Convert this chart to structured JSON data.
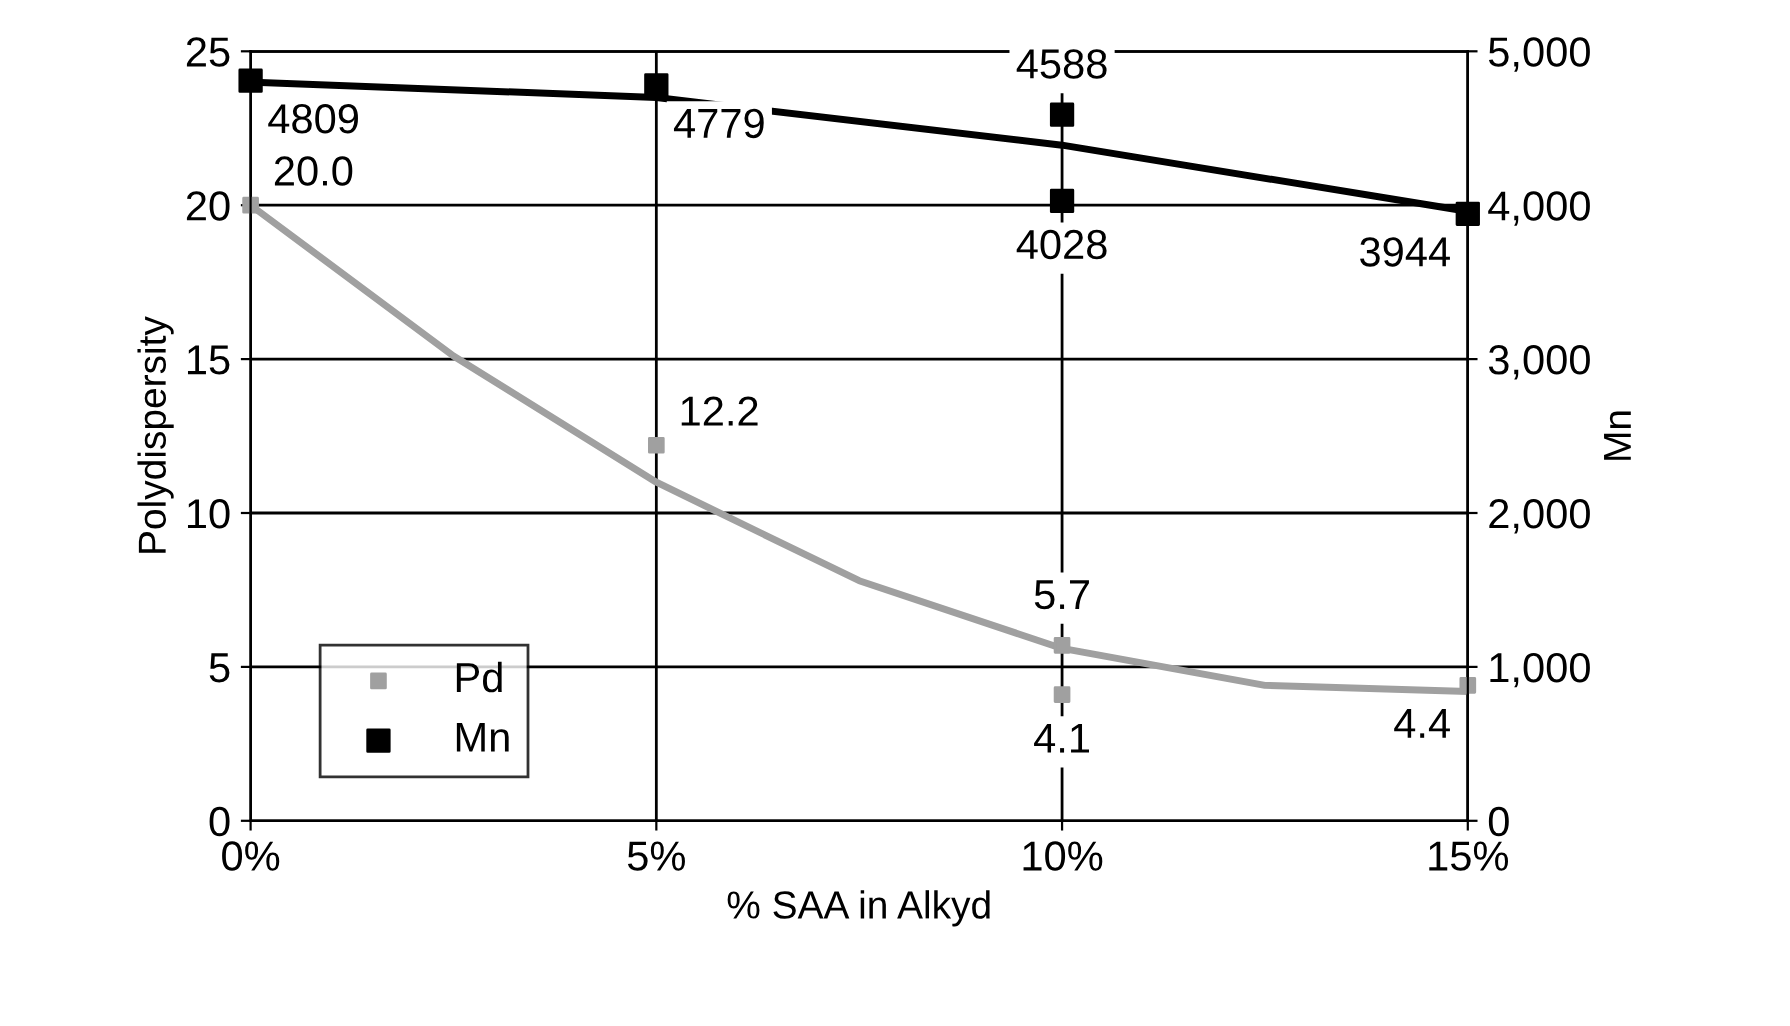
{
  "chart_data": {
    "type": "scatter",
    "xlabel": "% SAA in Alkyd",
    "ylabel": "Polydispersity",
    "y2label": "Mn",
    "xlim": [
      0,
      15
    ],
    "xticks": [
      {
        "value": 0,
        "label": "0%"
      },
      {
        "value": 5,
        "label": "5%"
      },
      {
        "value": 10,
        "label": "10%"
      },
      {
        "value": 15,
        "label": "15%"
      }
    ],
    "ylim": [
      0,
      25
    ],
    "yticks": [
      0,
      5,
      10,
      15,
      20,
      25
    ],
    "y2lim": [
      0,
      5000
    ],
    "y2ticks": [
      {
        "value": 0,
        "label": "0"
      },
      {
        "value": 1000,
        "label": "1,000"
      },
      {
        "value": 2000,
        "label": "2,000"
      },
      {
        "value": 3000,
        "label": "3,000"
      },
      {
        "value": 4000,
        "label": "4,000"
      },
      {
        "value": 5000,
        "label": "5,000"
      }
    ],
    "grid": true,
    "legend": "bottom left",
    "series": [
      {
        "type": "line",
        "color": "#a0a0a0",
        "x": [
          0,
          2.5,
          5,
          7.5,
          10,
          12.5,
          15
        ],
        "values": [
          20,
          15.1,
          11.0,
          7.8,
          5.6,
          4.4,
          4.2
        ],
        "marker": "none"
      },
      {
        "type": "line",
        "color": "#000000",
        "axis": "y2",
        "x": [
          0,
          5,
          10,
          15
        ],
        "values": [
          4800,
          4700,
          4390,
          3960
        ],
        "marker": "none"
      },
      {
        "name": "Pd",
        "color": "#a0a0a0",
        "marker": "square",
        "x": [
          0,
          5,
          10,
          10,
          15
        ],
        "values": [
          20.0,
          12.2,
          5.7,
          4.1,
          4.4
        ],
        "value_labels": [
          "20.0",
          "12.2",
          "5.7",
          "4.1",
          "4.4"
        ]
      },
      {
        "name": "Mn",
        "color": "#000000",
        "marker": "square",
        "axis": "y2",
        "x": [
          0,
          5,
          10,
          10,
          15
        ],
        "values": [
          4809,
          4779,
          4588,
          4028,
          3944
        ],
        "value_labels": [
          "4809",
          "4779",
          "4588",
          "4028",
          "3944"
        ]
      }
    ]
  }
}
